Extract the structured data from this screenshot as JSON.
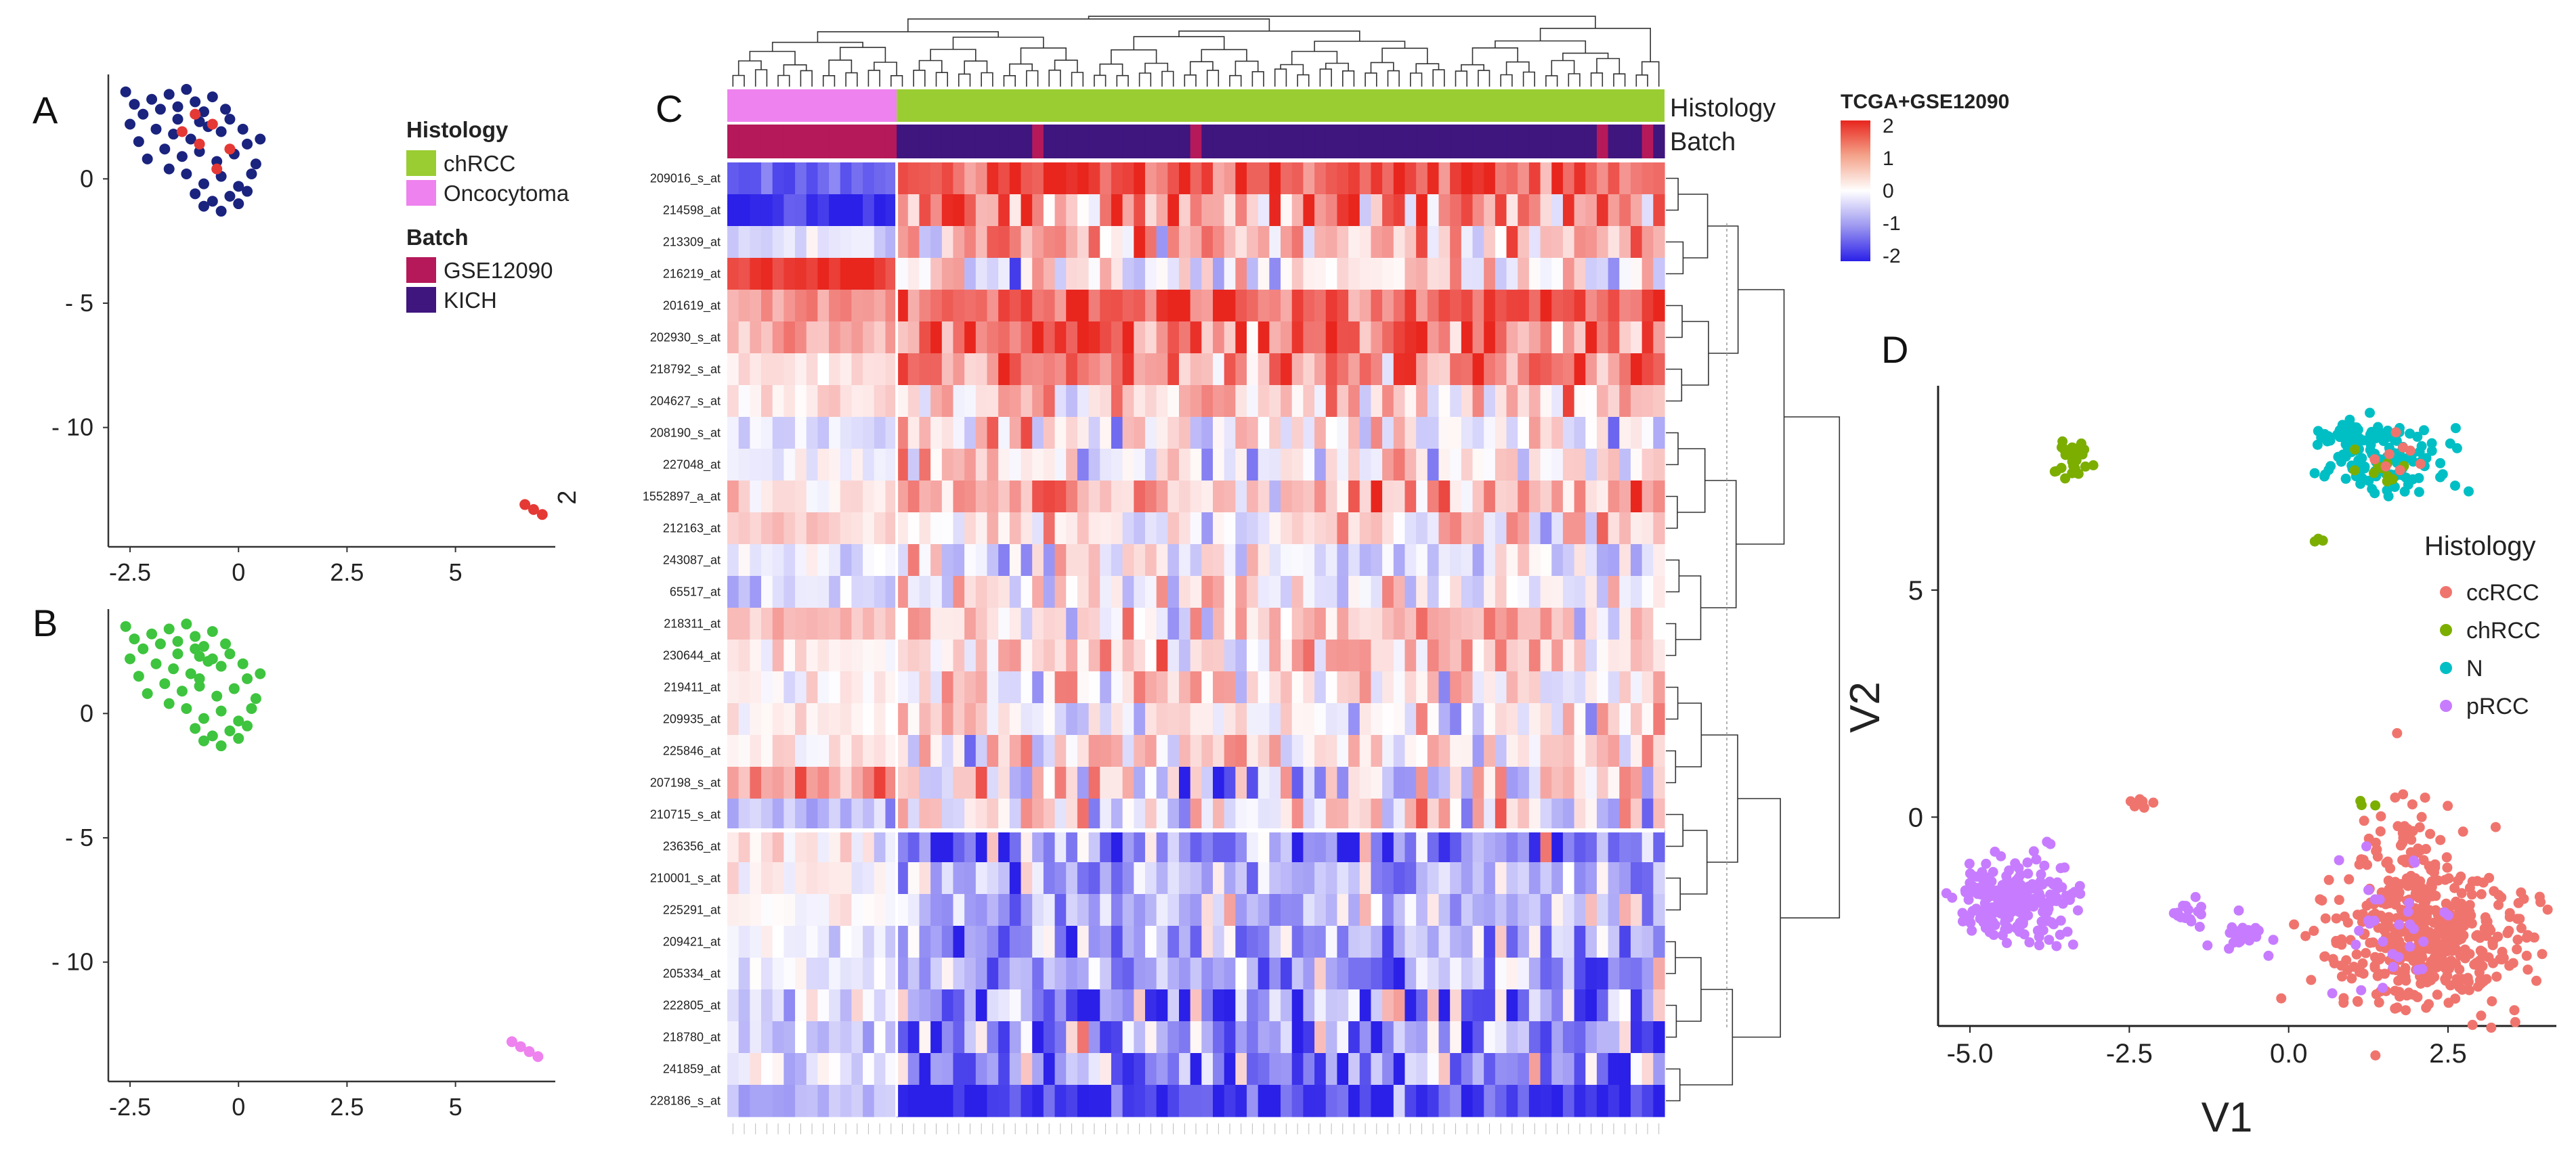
{
  "panels": {
    "a": "A",
    "b": "B",
    "c": "C",
    "d": "D"
  },
  "chart_data": [
    {
      "panel": "A",
      "type": "scatter",
      "title": "",
      "xlabel": "",
      "ylabel": "",
      "x_ticks": [
        "-2.5",
        "0",
        "2.5",
        "5"
      ],
      "y_ticks": [
        "0",
        "- 5",
        "- 10"
      ],
      "partial_y_label": "2",
      "xlim": [
        -3.0,
        7.3
      ],
      "ylim": [
        -14.8,
        4.2
      ],
      "legend": {
        "histology_title": "Histology",
        "histology": [
          {
            "name": "chRCC",
            "color": "#9acd32"
          },
          {
            "name": "Oncocytoma",
            "color": "#ee82ee"
          }
        ],
        "batch_title": "Batch",
        "batch": [
          {
            "name": "GSE12090",
            "color": "#b5195a"
          },
          {
            "name": "KICH",
            "color": "#3f157e"
          }
        ]
      },
      "series": [
        {
          "name": "KICH",
          "color": "#1a237e",
          "points": [
            [
              -2.6,
              3.5
            ],
            [
              -2.4,
              3.0
            ],
            [
              -2.2,
              2.6
            ],
            [
              -2.5,
              2.2
            ],
            [
              -2.0,
              3.2
            ],
            [
              -1.8,
              2.8
            ],
            [
              -1.6,
              3.4
            ],
            [
              -1.4,
              2.9
            ],
            [
              -1.2,
              3.6
            ],
            [
              -1.0,
              3.1
            ],
            [
              -0.8,
              2.7
            ],
            [
              -0.6,
              3.3
            ],
            [
              -1.9,
              2.0
            ],
            [
              -1.5,
              1.8
            ],
            [
              -1.1,
              1.6
            ],
            [
              -0.7,
              2.1
            ],
            [
              -0.4,
              1.9
            ],
            [
              -0.2,
              2.4
            ],
            [
              -1.7,
              1.2
            ],
            [
              -1.3,
              0.9
            ],
            [
              -0.9,
              1.1
            ],
            [
              -0.5,
              0.7
            ],
            [
              -0.1,
              1.0
            ],
            [
              0.2,
              1.4
            ],
            [
              0.4,
              0.6
            ],
            [
              -1.6,
              0.4
            ],
            [
              -1.2,
              0.2
            ],
            [
              -0.8,
              -0.2
            ],
            [
              -0.4,
              0.1
            ],
            [
              0.0,
              -0.3
            ],
            [
              0.3,
              0.2
            ],
            [
              -1.0,
              -0.6
            ],
            [
              -0.6,
              -0.9
            ],
            [
              -0.2,
              -0.7
            ],
            [
              0.2,
              -0.5
            ],
            [
              -0.8,
              -1.1
            ],
            [
              -0.4,
              -1.3
            ],
            [
              0.0,
              -1.0
            ],
            [
              -2.3,
              1.5
            ],
            [
              -2.1,
              0.8
            ],
            [
              -1.4,
              2.4
            ],
            [
              -0.3,
              2.8
            ],
            [
              0.1,
              2.0
            ],
            [
              0.5,
              1.6
            ],
            [
              -0.9,
              2.3
            ]
          ]
        },
        {
          "name": "GSE12090",
          "color": "#e53935",
          "points": [
            [
              -1.0,
              2.6
            ],
            [
              -0.6,
              2.2
            ],
            [
              -0.9,
              1.4
            ],
            [
              -0.2,
              1.2
            ],
            [
              -0.5,
              0.4
            ],
            [
              -1.3,
              1.9
            ],
            [
              6.6,
              -13.1
            ],
            [
              6.8,
              -13.3
            ],
            [
              7.0,
              -13.5
            ]
          ]
        }
      ]
    },
    {
      "panel": "B",
      "type": "scatter",
      "title": "",
      "xlabel": "",
      "ylabel": "",
      "x_ticks": [
        "-2.5",
        "0",
        "2.5",
        "5"
      ],
      "y_ticks": [
        "0",
        "- 5",
        "- 10"
      ],
      "xlim": [
        -3.0,
        7.3
      ],
      "ylim": [
        -14.8,
        4.2
      ],
      "series": [
        {
          "name": "chRCC",
          "color": "#3ec43e",
          "points": [
            [
              -2.6,
              3.5
            ],
            [
              -2.4,
              3.0
            ],
            [
              -2.2,
              2.6
            ],
            [
              -2.5,
              2.2
            ],
            [
              -2.0,
              3.2
            ],
            [
              -1.8,
              2.8
            ],
            [
              -1.6,
              3.4
            ],
            [
              -1.4,
              2.9
            ],
            [
              -1.2,
              3.6
            ],
            [
              -1.0,
              3.1
            ],
            [
              -0.8,
              2.7
            ],
            [
              -0.6,
              3.3
            ],
            [
              -1.9,
              2.0
            ],
            [
              -1.5,
              1.8
            ],
            [
              -1.1,
              1.6
            ],
            [
              -0.7,
              2.1
            ],
            [
              -0.4,
              1.9
            ],
            [
              -0.2,
              2.4
            ],
            [
              -1.7,
              1.2
            ],
            [
              -1.3,
              0.9
            ],
            [
              -0.9,
              1.1
            ],
            [
              -0.5,
              0.7
            ],
            [
              -0.1,
              1.0
            ],
            [
              0.2,
              1.4
            ],
            [
              0.4,
              0.6
            ],
            [
              -1.6,
              0.4
            ],
            [
              -1.2,
              0.2
            ],
            [
              -0.8,
              -0.2
            ],
            [
              -0.4,
              0.1
            ],
            [
              0.0,
              -0.3
            ],
            [
              0.3,
              0.2
            ],
            [
              -1.0,
              -0.6
            ],
            [
              -0.6,
              -0.9
            ],
            [
              -0.2,
              -0.7
            ],
            [
              0.2,
              -0.5
            ],
            [
              -0.8,
              -1.1
            ],
            [
              -0.4,
              -1.3
            ],
            [
              0.0,
              -1.0
            ],
            [
              -2.3,
              1.5
            ],
            [
              -2.1,
              0.8
            ],
            [
              -1.4,
              2.4
            ],
            [
              -0.3,
              2.8
            ],
            [
              0.1,
              2.0
            ],
            [
              0.5,
              1.6
            ],
            [
              -0.9,
              2.3
            ],
            [
              -1.0,
              2.6
            ],
            [
              -0.6,
              2.2
            ],
            [
              -0.9,
              1.4
            ]
          ]
        },
        {
          "name": "Oncocytoma",
          "color": "#ee82ee",
          "points": [
            [
              6.3,
              -13.2
            ],
            [
              6.5,
              -13.4
            ],
            [
              6.7,
              -13.6
            ],
            [
              6.9,
              -13.8
            ]
          ]
        }
      ]
    },
    {
      "panel": "C",
      "type": "heatmap",
      "title": "TCGA+GSE12090",
      "colorbar_ticks": [
        "2",
        "1",
        "0",
        "-1",
        "-2"
      ],
      "annotation_labels": [
        "Histology",
        "Batch"
      ],
      "histology_colors": {
        "Oncocytoma": "#ee82ee",
        "chRCC": "#9acd32"
      },
      "batch_colors": {
        "GSE12090": "#b5195a",
        "KICH": "#3f157e"
      },
      "rows": [
        "209016_s_at",
        "214598_at",
        "213309_at",
        "216219_at",
        "201619_at",
        "202930_s_at",
        "218792_s_at",
        "204627_s_at",
        "208190_s_at",
        "227048_at",
        "1552897_a_at",
        "212163_at",
        "243087_at",
        "65517_at",
        "218311_at",
        "230644_at",
        "219411_at",
        "209935_at",
        "225846_at",
        "207198_s_at",
        "210715_s_at",
        "236356_at",
        "210001_s_at",
        "225291_at",
        "209421_at",
        "205334_at",
        "222805_at",
        "218780_at",
        "241859_at",
        "228186_s_at"
      ],
      "n_columns": 83,
      "value_range": [
        -2,
        2
      ]
    },
    {
      "panel": "D",
      "type": "scatter",
      "xlabel": "V1",
      "ylabel": "V2",
      "x_ticks": [
        "-5.0",
        "-2.5",
        "0.0",
        "2.5"
      ],
      "y_ticks": [
        "5",
        "0"
      ],
      "xlim": [
        -5.5,
        4.2
      ],
      "ylim": [
        -4.6,
        9.5
      ],
      "legend_title": "Histology",
      "series": [
        {
          "name": "ccRCC",
          "color": "#f0746e"
        },
        {
          "name": "chRCC",
          "color": "#7cae00"
        },
        {
          "name": "N",
          "color": "#00bfc4"
        },
        {
          "name": "pRCC",
          "color": "#c77cff"
        }
      ]
    }
  ]
}
